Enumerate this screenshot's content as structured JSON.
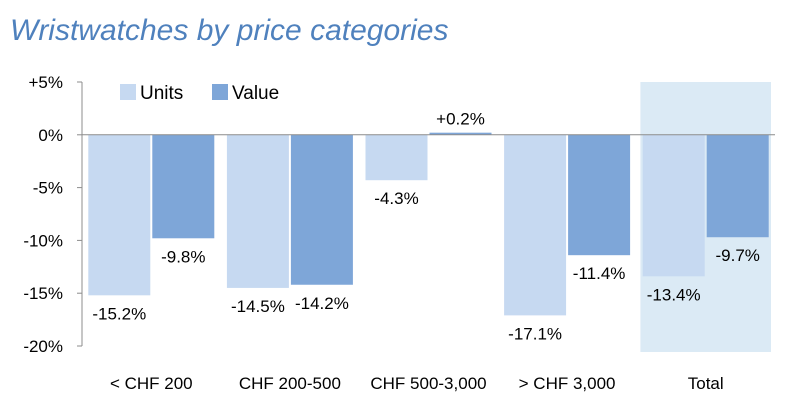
{
  "chart_data": {
    "type": "bar",
    "title": "Wristwatches by price categories",
    "categories": [
      "< CHF 200",
      "CHF 200-500",
      "CHF 500-3,000",
      "> CHF 3,000",
      "Total"
    ],
    "series": [
      {
        "name": "Units",
        "values": [
          -15.2,
          -14.5,
          -4.3,
          -17.1,
          -13.4
        ],
        "labels": [
          "-15.2%",
          "-14.5%",
          "-4.3%",
          "-17.1%",
          "-13.4%"
        ]
      },
      {
        "name": "Value",
        "values": [
          -9.8,
          -14.2,
          0.2,
          -11.4,
          -9.7
        ],
        "labels": [
          "-9.8%",
          "-14.2%",
          "+0.2%",
          "-11.4%",
          "-9.7%"
        ]
      }
    ],
    "yticks": [
      {
        "value": 5,
        "label": "+5%"
      },
      {
        "value": 0,
        "label": "0%"
      },
      {
        "value": -5,
        "label": "-5%"
      },
      {
        "value": -10,
        "label": "-10%"
      },
      {
        "value": -15,
        "label": "-15%"
      },
      {
        "value": -20,
        "label": "-20%"
      }
    ],
    "ylim": [
      -20,
      5
    ],
    "xlabel": "",
    "ylabel": "",
    "legend": "top-left",
    "highlight_category": "Total",
    "colors": {
      "Units": "#c6d9f1",
      "Value": "#7ea6d8",
      "highlight": "#dbeaf5",
      "axis": "#8c8c8c",
      "title": "#4f81bd"
    }
  }
}
